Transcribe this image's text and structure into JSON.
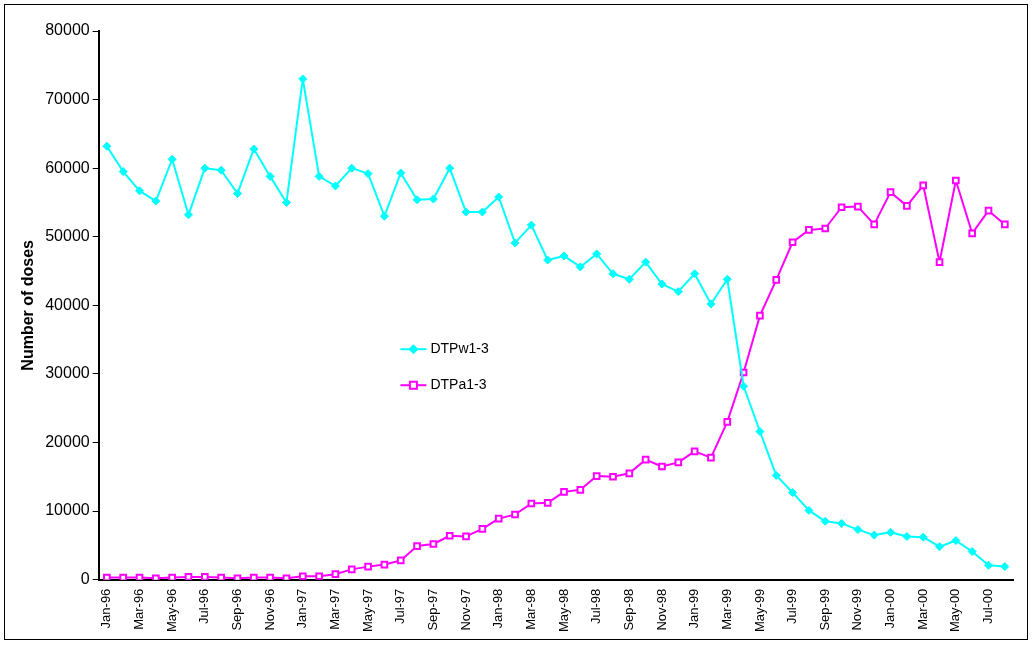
{
  "chart_data": {
    "type": "line",
    "ylabel": "Number of doses",
    "categories": [
      "Jan-96",
      null,
      "Mar-96",
      null,
      "May-96",
      null,
      "Jul-96",
      null,
      "Sep-96",
      null,
      "Nov-96",
      null,
      "Jan-97",
      null,
      "Mar-97",
      null,
      "May-97",
      null,
      "Jul-97",
      null,
      "Sep-97",
      null,
      "Nov-97",
      null,
      "Jan-98",
      null,
      "Mar-98",
      null,
      "May-98",
      null,
      "Jul-98",
      null,
      "Sep-98",
      null,
      "Nov-98",
      null,
      "Jan-99",
      null,
      "Mar-99",
      null,
      "May-99",
      null,
      "Jul-99",
      null,
      "Sep-99",
      null,
      "Nov-99",
      null,
      "Jan-00",
      null,
      "Mar-00",
      null,
      "May-00",
      null,
      "Jul-00",
      null
    ],
    "series": [
      {
        "name": "DTPw1-3",
        "color": "#00ffff",
        "marker": "diamond",
        "values": [
          63200,
          59500,
          56700,
          55200,
          61300,
          53200,
          60000,
          59700,
          56300,
          62800,
          58800,
          55000,
          73000,
          58800,
          57400,
          60000,
          59200,
          53000,
          59300,
          55400,
          55500,
          60000,
          53600,
          53600,
          55800,
          49100,
          51700,
          46600,
          47200,
          45600,
          47500,
          44600,
          43800,
          46300,
          43100,
          42000,
          44600,
          40200,
          43800,
          28200,
          21600,
          15200,
          12700,
          10100,
          8500,
          8200,
          7300,
          6500,
          6900,
          6300,
          6200,
          4800,
          5700,
          4100,
          2100,
          1900
        ]
      },
      {
        "name": "DTPa1-3",
        "color": "#ff00ff",
        "marker": "square",
        "values": [
          300,
          300,
          300,
          200,
          300,
          400,
          400,
          300,
          200,
          300,
          300,
          200,
          500,
          500,
          800,
          1500,
          1900,
          2200,
          2800,
          4900,
          5200,
          6400,
          6300,
          7400,
          8900,
          9500,
          11100,
          11200,
          12800,
          13100,
          15100,
          15000,
          15500,
          17500,
          16500,
          17100,
          18700,
          17800,
          23000,
          30200,
          38500,
          43700,
          49200,
          51000,
          51200,
          54300,
          54400,
          51800,
          56500,
          54500,
          57500,
          46300,
          58200,
          50500,
          53800,
          51800
        ]
      }
    ],
    "ylim": [
      0,
      80000
    ],
    "yticks": [
      0,
      10000,
      20000,
      30000,
      40000,
      50000,
      60000,
      70000,
      80000
    ],
    "grid": false,
    "legend": "center"
  }
}
